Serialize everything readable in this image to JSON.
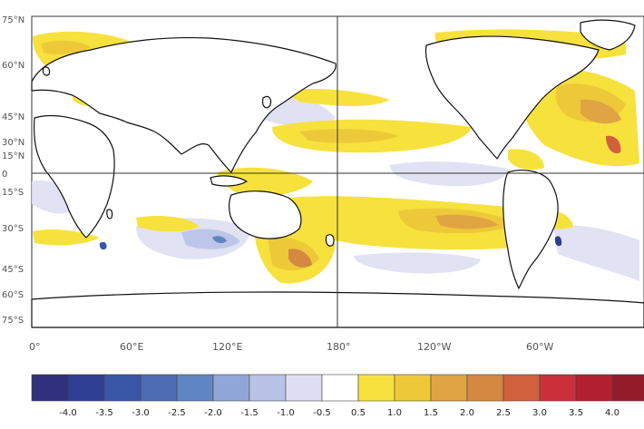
{
  "map": {
    "latitude_labels": [
      "75°N",
      "60°N",
      "45°N",
      "30°N",
      "15°N",
      "0",
      "15°S",
      "30°S",
      "45°S",
      "60°S",
      "75°S"
    ],
    "longitude_labels": [
      "0°",
      "60°E",
      "120°E",
      "180°",
      "120°W",
      "60°W"
    ]
  },
  "colorbar": {
    "labels": [
      "-4.0",
      "-3.5",
      "-3.0",
      "-2.5",
      "-2.0",
      "-1.5",
      "-1.0",
      "-0.5",
      "0.5",
      "1.0",
      "1.5",
      "2.0",
      "2.5",
      "3.0",
      "3.5",
      "4.0"
    ],
    "colors": [
      "#30307f",
      "#2e3e92",
      "#3a56a6",
      "#4d6cb4",
      "#5f86c2",
      "#91a6d8",
      "#b9c3e7",
      "#dedff2",
      "#ffffff",
      "#f7e13d",
      "#edc93a",
      "#e0a443",
      "#d58841",
      "#d1603e",
      "#c9303a",
      "#b22030",
      "#931c2a"
    ]
  }
}
